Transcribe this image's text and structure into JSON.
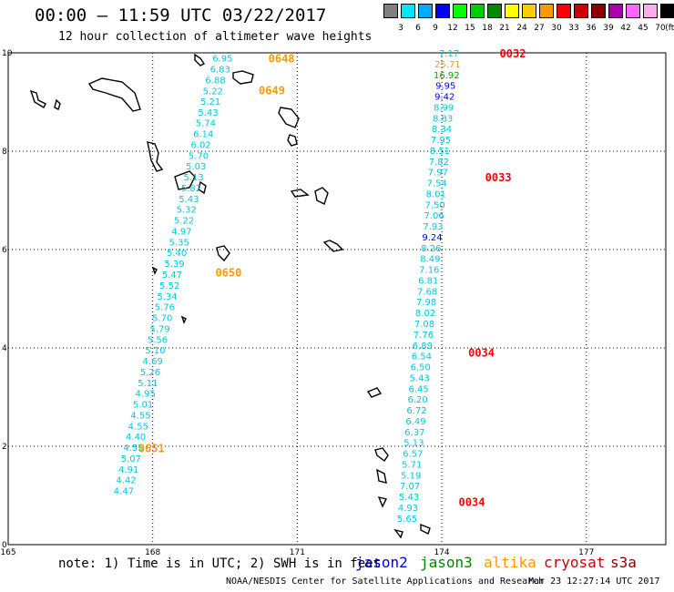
{
  "header": {
    "title": "00:00 — 11:59 UTC 03/22/2017",
    "subtitle": "12 hour collection of altimeter wave heights"
  },
  "scale": {
    "unit": "(ft)",
    "ticks": [
      "3",
      "6",
      "9",
      "12",
      "15",
      "18",
      "21",
      "24",
      "27",
      "30",
      "33",
      "36",
      "39",
      "42",
      "45",
      "70"
    ],
    "colors": [
      "#808080",
      "#00e5ff",
      "#00aaff",
      "#0000ff",
      "#00ff00",
      "#00cc00",
      "#008800",
      "#ffff00",
      "#ffcc00",
      "#ff9900",
      "#ff0000",
      "#cc0000",
      "#880000",
      "#aa00aa",
      "#ff66ff",
      "#ffaaee",
      "#000000"
    ]
  },
  "axes": {
    "x_ticks": [
      "165",
      "168",
      "171",
      "174",
      "177"
    ],
    "y_ticks": [
      "0",
      "2",
      "4",
      "6",
      "8",
      "10"
    ]
  },
  "tracks": [
    {
      "name": "track-west",
      "time_labels": [
        {
          "text": "0648",
          "color": "#ff9900",
          "lon": 170.4,
          "lat": 9.9
        },
        {
          "text": "0649",
          "color": "#ff9900",
          "lon": 170.2,
          "lat": 9.25
        },
        {
          "text": "0650",
          "color": "#ff9900",
          "lon": 169.3,
          "lat": 5.55
        },
        {
          "text": "0651",
          "color": "#ff9900",
          "lon": 167.7,
          "lat": 1.97
        }
      ],
      "points": [
        {
          "v": "6.95",
          "lon": 169.45,
          "lat": 9.9
        },
        {
          "v": "6.83",
          "lon": 169.4,
          "lat": 9.68
        },
        {
          "v": "6.88",
          "lon": 169.3,
          "lat": 9.45
        },
        {
          "v": "5.22",
          "lon": 169.25,
          "lat": 9.23
        },
        {
          "v": "5.21",
          "lon": 169.2,
          "lat": 9.02
        },
        {
          "v": "5.43",
          "lon": 169.15,
          "lat": 8.8
        },
        {
          "v": "5.74",
          "lon": 169.1,
          "lat": 8.58
        },
        {
          "v": "6.14",
          "lon": 169.05,
          "lat": 8.36
        },
        {
          "v": "6.02",
          "lon": 169.0,
          "lat": 8.14
        },
        {
          "v": "5.70",
          "lon": 168.95,
          "lat": 7.92
        },
        {
          "v": "5.03",
          "lon": 168.9,
          "lat": 7.7
        },
        {
          "v": "5.13",
          "lon": 168.85,
          "lat": 7.48
        },
        {
          "v": "5.82",
          "lon": 168.8,
          "lat": 7.26
        },
        {
          "v": "5.43",
          "lon": 168.75,
          "lat": 7.04
        },
        {
          "v": "5.32",
          "lon": 168.7,
          "lat": 6.82
        },
        {
          "v": "5.22",
          "lon": 168.65,
          "lat": 6.6
        },
        {
          "v": "4.97",
          "lon": 168.6,
          "lat": 6.38
        },
        {
          "v": "5.35",
          "lon": 168.55,
          "lat": 6.16
        },
        {
          "v": "5.40",
          "lon": 168.5,
          "lat": 5.94
        },
        {
          "v": "5.39",
          "lon": 168.45,
          "lat": 5.72
        },
        {
          "v": "5.47",
          "lon": 168.4,
          "lat": 5.5
        },
        {
          "v": "5.52",
          "lon": 168.35,
          "lat": 5.28
        },
        {
          "v": "5.34",
          "lon": 168.3,
          "lat": 5.06
        },
        {
          "v": "5.76",
          "lon": 168.25,
          "lat": 4.84
        },
        {
          "v": "5.70",
          "lon": 168.2,
          "lat": 4.62
        },
        {
          "v": "5.79",
          "lon": 168.15,
          "lat": 4.4
        },
        {
          "v": "5.56",
          "lon": 168.1,
          "lat": 4.18
        },
        {
          "v": "5.10",
          "lon": 168.05,
          "lat": 3.96
        },
        {
          "v": "4.69",
          "lon": 168.0,
          "lat": 3.74
        },
        {
          "v": "5.26",
          "lon": 167.95,
          "lat": 3.52
        },
        {
          "v": "5.11",
          "lon": 167.9,
          "lat": 3.3
        },
        {
          "v": "4.95",
          "lon": 167.85,
          "lat": 3.08
        },
        {
          "v": "5.01",
          "lon": 167.8,
          "lat": 2.86
        },
        {
          "v": "4.55",
          "lon": 167.75,
          "lat": 2.64
        },
        {
          "v": "4.55",
          "lon": 167.7,
          "lat": 2.42
        },
        {
          "v": "4.40",
          "lon": 167.65,
          "lat": 2.2
        },
        {
          "v": "4.55",
          "lon": 167.6,
          "lat": 1.98
        },
        {
          "v": "5.07",
          "lon": 167.55,
          "lat": 1.76
        },
        {
          "v": "4.91",
          "lon": 167.5,
          "lat": 1.54
        },
        {
          "v": "4.42",
          "lon": 167.45,
          "lat": 1.32
        },
        {
          "v": "4.47",
          "lon": 167.4,
          "lat": 1.1
        }
      ]
    },
    {
      "name": "track-east",
      "time_labels": [
        {
          "text": "0032",
          "color": "#ff0000",
          "lon": 175.2,
          "lat": 10.0
        },
        {
          "text": "0033",
          "color": "#ff0000",
          "lon": 174.9,
          "lat": 7.48
        },
        {
          "text": "0034",
          "color": "#ff0000",
          "lon": 174.55,
          "lat": 3.92
        },
        {
          "text": "0034",
          "color": "#ff0000",
          "lon": 174.35,
          "lat": 0.88
        }
      ],
      "points": [
        {
          "v": "7.17",
          "color": "#00c8e0",
          "lon": 174.15,
          "lat": 10.0
        },
        {
          "v": "25.71",
          "color": "#ff9900",
          "lon": 174.12,
          "lat": 9.78
        },
        {
          "v": "16.92",
          "color": "#00aa00",
          "lon": 174.1,
          "lat": 9.56
        },
        {
          "v": "9.95",
          "color": "#0000ff",
          "lon": 174.08,
          "lat": 9.34
        },
        {
          "v": "9.42",
          "color": "#0000ff",
          "lon": 174.06,
          "lat": 9.12
        },
        {
          "v": "8.99",
          "color": "#00c8e0",
          "lon": 174.04,
          "lat": 8.9
        },
        {
          "v": "8.83",
          "color": "#00c8e0",
          "lon": 174.02,
          "lat": 8.68
        },
        {
          "v": "8.34",
          "color": "#00c8e0",
          "lon": 174.0,
          "lat": 8.46
        },
        {
          "v": "7.95",
          "color": "#00c8e0",
          "lon": 173.98,
          "lat": 8.24
        },
        {
          "v": "8.51",
          "color": "#00c8e0",
          "lon": 173.96,
          "lat": 8.02
        },
        {
          "v": "7.82",
          "color": "#00c8e0",
          "lon": 173.94,
          "lat": 7.8
        },
        {
          "v": "7.97",
          "color": "#00c8e0",
          "lon": 173.92,
          "lat": 7.58
        },
        {
          "v": "7.54",
          "color": "#00c8e0",
          "lon": 173.9,
          "lat": 7.36
        },
        {
          "v": "8.01",
          "color": "#00c8e0",
          "lon": 173.88,
          "lat": 7.14
        },
        {
          "v": "7.50",
          "color": "#00c8e0",
          "lon": 173.86,
          "lat": 6.92
        },
        {
          "v": "7.06",
          "color": "#00c8e0",
          "lon": 173.84,
          "lat": 6.7
        },
        {
          "v": "7.93",
          "color": "#00c8e0",
          "lon": 173.82,
          "lat": 6.48
        },
        {
          "v": "9.24",
          "color": "#0000ff",
          "lon": 173.8,
          "lat": 6.26
        },
        {
          "v": "8.26",
          "color": "#00c8e0",
          "lon": 173.78,
          "lat": 6.04
        },
        {
          "v": "8.49",
          "color": "#00c8e0",
          "lon": 173.76,
          "lat": 5.82
        },
        {
          "v": "7.16",
          "color": "#00c8e0",
          "lon": 173.74,
          "lat": 5.6
        },
        {
          "v": "6.81",
          "color": "#00c8e0",
          "lon": 173.72,
          "lat": 5.38
        },
        {
          "v": "7.68",
          "color": "#00c8e0",
          "lon": 173.7,
          "lat": 5.16
        },
        {
          "v": "7.98",
          "color": "#00c8e0",
          "lon": 173.68,
          "lat": 4.94
        },
        {
          "v": "8.02",
          "color": "#00c8e0",
          "lon": 173.66,
          "lat": 4.72
        },
        {
          "v": "7.08",
          "color": "#00c8e0",
          "lon": 173.64,
          "lat": 4.5
        },
        {
          "v": "7.76",
          "color": "#00c8e0",
          "lon": 173.62,
          "lat": 4.28
        },
        {
          "v": "6.89",
          "color": "#00c8e0",
          "lon": 173.6,
          "lat": 4.06
        },
        {
          "v": "6.54",
          "color": "#00c8e0",
          "lon": 173.58,
          "lat": 3.84
        },
        {
          "v": "6.50",
          "color": "#00c8e0",
          "lon": 173.56,
          "lat": 3.62
        },
        {
          "v": "5.43",
          "color": "#00c8e0",
          "lon": 173.54,
          "lat": 3.4
        },
        {
          "v": "6.45",
          "color": "#00c8e0",
          "lon": 173.52,
          "lat": 3.18
        },
        {
          "v": "6.20",
          "color": "#00c8e0",
          "lon": 173.5,
          "lat": 2.96
        },
        {
          "v": "6.72",
          "color": "#00c8e0",
          "lon": 173.48,
          "lat": 2.74
        },
        {
          "v": "6.49",
          "color": "#00c8e0",
          "lon": 173.46,
          "lat": 2.52
        },
        {
          "v": "6.37",
          "color": "#00c8e0",
          "lon": 173.44,
          "lat": 2.3
        },
        {
          "v": "5.13",
          "color": "#00c8e0",
          "lon": 173.42,
          "lat": 2.08
        },
        {
          "v": "6.57",
          "color": "#00c8e0",
          "lon": 173.4,
          "lat": 1.86
        },
        {
          "v": "5.71",
          "color": "#00c8e0",
          "lon": 173.38,
          "lat": 1.64
        },
        {
          "v": "5.19",
          "color": "#00c8e0",
          "lon": 173.36,
          "lat": 1.42
        },
        {
          "v": "7.07",
          "color": "#00c8e0",
          "lon": 173.34,
          "lat": 1.2
        },
        {
          "v": "5.43",
          "color": "#00c8e0",
          "lon": 173.32,
          "lat": 0.98
        },
        {
          "v": "4.93",
          "color": "#00c8e0",
          "lon": 173.3,
          "lat": 0.76
        },
        {
          "v": "5.65",
          "color": "#00c8e0",
          "lon": 173.28,
          "lat": 0.54
        }
      ]
    }
  ],
  "note": "note: 1) Time is in UTC; 2) SWH is in feet",
  "satellites": [
    {
      "name": "jason2",
      "color": "#0000cc"
    },
    {
      "name": "jason3",
      "color": "#008800"
    },
    {
      "name": "altika",
      "color": "#ff9900"
    },
    {
      "name": "cryosat",
      "color": "#cc0000"
    },
    {
      "name": "s3a",
      "color": "#880000"
    }
  ],
  "footer": "NOAA/NESDIS Center for Satellite Applications and Research",
  "stamp": "Mar 23 12:27:14 UTC 2017"
}
